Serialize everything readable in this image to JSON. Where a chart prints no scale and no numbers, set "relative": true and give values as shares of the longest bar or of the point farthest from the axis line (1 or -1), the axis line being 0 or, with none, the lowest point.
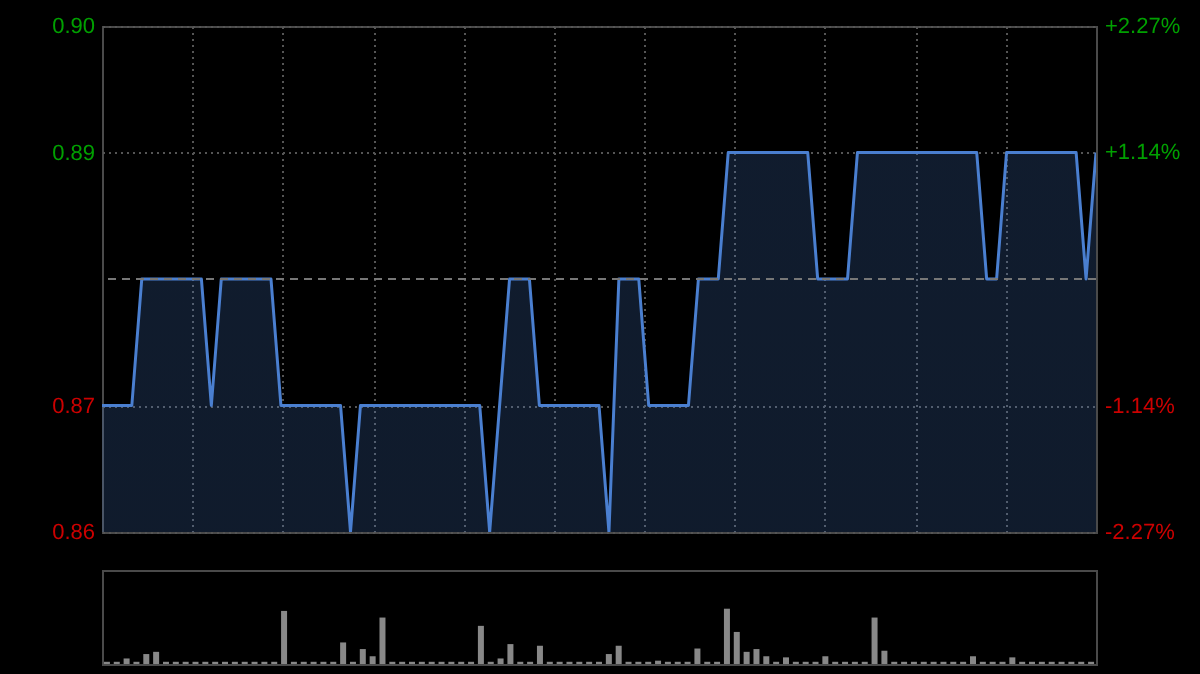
{
  "chart_data": [
    {
      "type": "area",
      "categories": [
        null,
        null,
        null,
        null,
        null,
        null,
        null,
        null,
        null,
        null,
        null,
        null,
        null,
        null,
        null,
        null,
        null,
        null,
        null,
        null,
        null,
        null,
        null,
        null,
        null,
        null,
        null,
        null,
        null,
        null,
        null,
        null,
        null,
        null,
        null,
        null,
        null,
        null,
        null,
        null,
        null,
        null,
        null,
        null,
        null,
        null,
        null,
        null,
        null,
        null,
        null,
        null,
        null,
        null,
        null,
        null,
        null,
        null,
        null,
        null,
        null,
        null,
        null,
        null,
        null,
        null,
        null,
        null,
        null,
        null,
        null,
        null,
        null,
        null,
        null,
        null,
        null,
        null,
        null,
        null,
        null,
        null,
        null,
        null,
        null,
        null,
        null,
        null,
        null,
        null,
        null,
        null,
        null,
        null,
        null,
        null,
        null,
        null,
        null,
        null,
        null
      ],
      "series": [
        {
          "color": "#4a7fd0",
          "values": [
            0.87,
            0.87,
            0.87,
            0.87,
            0.88,
            0.88,
            0.88,
            0.88,
            0.88,
            0.88,
            0.88,
            0.87,
            0.88,
            0.88,
            0.88,
            0.88,
            0.88,
            0.88,
            0.87,
            0.87,
            0.87,
            0.87,
            0.87,
            0.87,
            0.87,
            0.86,
            0.87,
            0.87,
            0.87,
            0.87,
            0.87,
            0.87,
            0.87,
            0.87,
            0.87,
            0.87,
            0.87,
            0.87,
            0.87,
            0.86,
            0.87,
            0.88,
            0.88,
            0.88,
            0.87,
            0.87,
            0.87,
            0.87,
            0.87,
            0.87,
            0.87,
            0.86,
            0.88,
            0.88,
            0.88,
            0.87,
            0.87,
            0.87,
            0.87,
            0.87,
            0.88,
            0.88,
            0.88,
            0.89,
            0.89,
            0.89,
            0.89,
            0.89,
            0.89,
            0.89,
            0.89,
            0.89,
            0.88,
            0.88,
            0.88,
            0.88,
            0.89,
            0.89,
            0.89,
            0.89,
            0.89,
            0.89,
            0.89,
            0.89,
            0.89,
            0.89,
            0.89,
            0.89,
            0.89,
            0.88,
            0.88,
            0.89,
            0.89,
            0.89,
            0.89,
            0.89,
            0.89,
            0.89,
            0.89,
            0.88,
            0.89
          ]
        }
      ],
      "ylim": [
        0.86,
        0.9
      ],
      "yticks": [
        {
          "value": 0.86,
          "label": "0.86"
        },
        {
          "value": 0.87,
          "label": "0.87"
        },
        {
          "value": 0.89,
          "label": "0.89"
        },
        {
          "value": 0.9,
          "label": "0.90"
        }
      ],
      "y2lim": [
        -2.27,
        2.27
      ],
      "y2ticks": [
        {
          "value": -2.27,
          "label": "-2.27%"
        },
        {
          "value": -1.14,
          "label": "-1.14%"
        },
        {
          "value": 1.14,
          "label": "+1.14%"
        },
        {
          "value": 2.27,
          "label": "+2.27%"
        }
      ],
      "ref_lines": [
        {
          "axis": "y",
          "value": 0.88,
          "line_style": "dashed"
        }
      ],
      "grid": true
    },
    {
      "type": "bar",
      "relative": true,
      "categories": [
        null,
        null,
        null,
        null,
        null,
        null,
        null,
        null,
        null,
        null,
        null,
        null,
        null,
        null,
        null,
        null,
        null,
        null,
        null,
        null,
        null,
        null,
        null,
        null,
        null,
        null,
        null,
        null,
        null,
        null,
        null,
        null,
        null,
        null,
        null,
        null,
        null,
        null,
        null,
        null,
        null,
        null,
        null,
        null,
        null,
        null,
        null,
        null,
        null,
        null,
        null,
        null,
        null,
        null,
        null,
        null,
        null,
        null,
        null,
        null,
        null,
        null,
        null,
        null,
        null,
        null,
        null,
        null,
        null,
        null,
        null,
        null,
        null,
        null,
        null,
        null,
        null,
        null,
        null,
        null,
        null,
        null,
        null,
        null,
        null,
        null,
        null,
        null,
        null,
        null,
        null,
        null,
        null,
        null,
        null,
        null,
        null,
        null,
        null,
        null,
        null
      ],
      "series": [
        {
          "color": "#888888",
          "values": [
            0.04,
            0.04,
            0.1,
            0.04,
            0.18,
            0.22,
            0.04,
            0.04,
            0.04,
            0.04,
            0.04,
            0.04,
            0.04,
            0.04,
            0.04,
            0.04,
            0.04,
            0.04,
            0.96,
            0.04,
            0.04,
            0.04,
            0.04,
            0.04,
            0.39,
            0.04,
            0.27,
            0.14,
            0.84,
            0.04,
            0.04,
            0.04,
            0.04,
            0.04,
            0.04,
            0.04,
            0.04,
            0.04,
            0.69,
            0.04,
            0.1,
            0.36,
            0.04,
            0.04,
            0.33,
            0.04,
            0.04,
            0.04,
            0.04,
            0.04,
            0.04,
            0.18,
            0.33,
            0.04,
            0.04,
            0.04,
            0.06,
            0.04,
            0.04,
            0.04,
            0.28,
            0.04,
            0.04,
            1,
            0.58,
            0.22,
            0.27,
            0.14,
            0.04,
            0.12,
            0.04,
            0.04,
            0.04,
            0.14,
            0.04,
            0.04,
            0.04,
            0.04,
            0.84,
            0.24,
            0.04,
            0.04,
            0.04,
            0.04,
            0.04,
            0.04,
            0.04,
            0.04,
            0.14,
            0.04,
            0.04,
            0.04,
            0.12,
            0.04,
            0.04,
            0.04,
            0.04,
            0.04,
            0.04,
            0.04,
            0.04
          ]
        }
      ]
    }
  ]
}
